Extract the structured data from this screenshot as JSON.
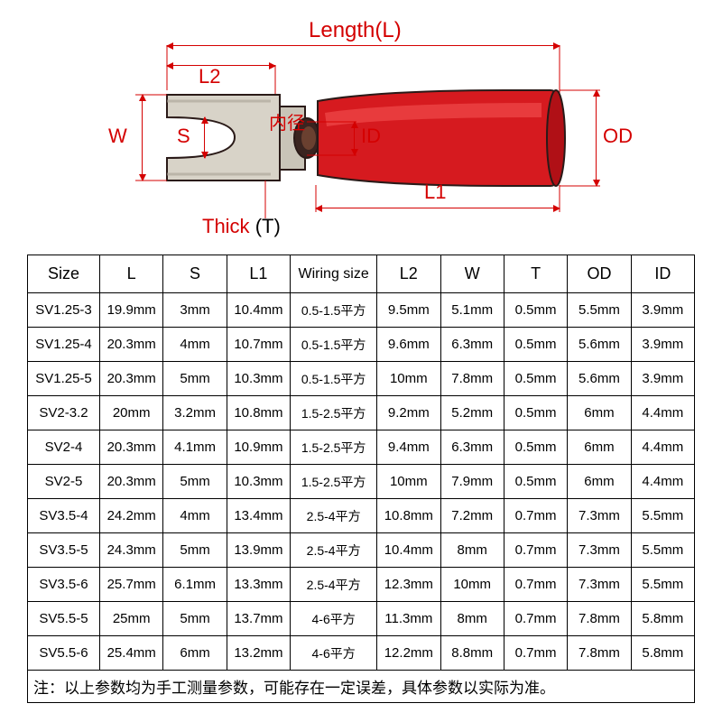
{
  "diagram": {
    "title": "Length(L)",
    "labels": {
      "L2": "L2",
      "W": "W",
      "S": "S",
      "inner_cn": "内径",
      "ID": "ID",
      "OD": "OD",
      "L1": "L1",
      "Thick": "Thick",
      "T_suffix": "(T)"
    },
    "shape": {
      "body_color": "#d61a1f",
      "body_highlight": "#f03a3a",
      "metal_color": "#d8d3c8",
      "metal_shadow": "#a8a296",
      "outline": "#2a1a18"
    }
  },
  "table": {
    "headers": [
      "Size",
      "L",
      "S",
      "L1",
      "Wiring size",
      "L2",
      "W",
      "T",
      "OD",
      "ID"
    ],
    "rows": [
      [
        "SV1.25-3",
        "19.9mm",
        "3mm",
        "10.4mm",
        "0.5-1.5平方",
        "9.5mm",
        "5.1mm",
        "0.5mm",
        "5.5mm",
        "3.9mm"
      ],
      [
        "SV1.25-4",
        "20.3mm",
        "4mm",
        "10.7mm",
        "0.5-1.5平方",
        "9.6mm",
        "6.3mm",
        "0.5mm",
        "5.6mm",
        "3.9mm"
      ],
      [
        "SV1.25-5",
        "20.3mm",
        "5mm",
        "10.3mm",
        "0.5-1.5平方",
        "10mm",
        "7.8mm",
        "0.5mm",
        "5.6mm",
        "3.9mm"
      ],
      [
        "SV2-3.2",
        "20mm",
        "3.2mm",
        "10.8mm",
        "1.5-2.5平方",
        "9.2mm",
        "5.2mm",
        "0.5mm",
        "6mm",
        "4.4mm"
      ],
      [
        "SV2-4",
        "20.3mm",
        "4.1mm",
        "10.9mm",
        "1.5-2.5平方",
        "9.4mm",
        "6.3mm",
        "0.5mm",
        "6mm",
        "4.4mm"
      ],
      [
        "SV2-5",
        "20.3mm",
        "5mm",
        "10.3mm",
        "1.5-2.5平方",
        "10mm",
        "7.9mm",
        "0.5mm",
        "6mm",
        "4.4mm"
      ],
      [
        "SV3.5-4",
        "24.2mm",
        "4mm",
        "13.4mm",
        "2.5-4平方",
        "10.8mm",
        "7.2mm",
        "0.7mm",
        "7.3mm",
        "5.5mm"
      ],
      [
        "SV3.5-5",
        "24.3mm",
        "5mm",
        "13.9mm",
        "2.5-4平方",
        "10.4mm",
        "8mm",
        "0.7mm",
        "7.3mm",
        "5.5mm"
      ],
      [
        "SV3.5-6",
        "25.7mm",
        "6.1mm",
        "13.3mm",
        "2.5-4平方",
        "12.3mm",
        "10mm",
        "0.7mm",
        "7.3mm",
        "5.5mm"
      ],
      [
        "SV5.5-5",
        "25mm",
        "5mm",
        "13.7mm",
        "4-6平方",
        "11.3mm",
        "8mm",
        "0.7mm",
        "7.8mm",
        "5.8mm"
      ],
      [
        "SV5.5-6",
        "25.4mm",
        "6mm",
        "13.2mm",
        "4-6平方",
        "12.2mm",
        "8.8mm",
        "0.7mm",
        "7.8mm",
        "5.8mm"
      ]
    ],
    "note": "注：以上参数均为手工测量参数，可能存在一定误差，具体参数以实际为准。"
  },
  "colors": {
    "accent": "#d40000",
    "fg": "#000000",
    "bg": "#ffffff"
  }
}
